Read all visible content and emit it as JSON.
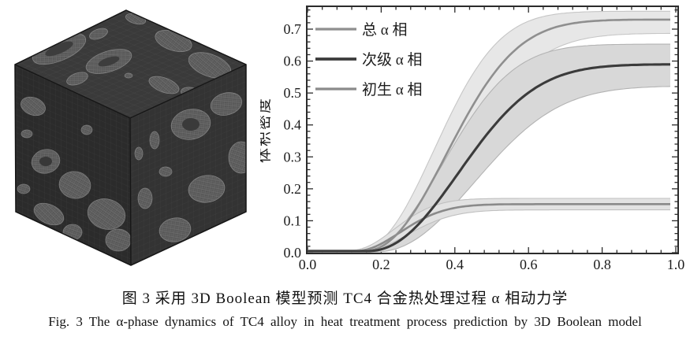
{
  "figure": {
    "caption_cn": "图 3  采用 3D Boolean 模型预测 TC4 合金热处理过程 α 相动力学",
    "caption_en": "Fig. 3  The α-phase dynamics of TC4 alloy in heat treatment process prediction by 3D Boolean model"
  },
  "cube_render": {
    "alt": "3D Boolean model microstructure cube with meshed α-phase particles"
  },
  "chart_data": {
    "type": "line",
    "title": "",
    "xlabel": "",
    "ylabel": "体积密度",
    "xlim": [
      0.0,
      1.0
    ],
    "ylim": [
      0.0,
      0.772
    ],
    "x_ticks": [
      0.0,
      0.2,
      0.4,
      0.6,
      0.8,
      1.0
    ],
    "x_minor_step": 0.04,
    "y_ticks": [
      0.0,
      0.1,
      0.2,
      0.3,
      0.4,
      0.5,
      0.6,
      0.7
    ],
    "y_minor_step": 0.02,
    "grid": false,
    "frame": "box-with-inward-ticks",
    "axis_color": "#2b2b2b",
    "legend_position": "top-left",
    "x_shared": [
      0.0,
      0.1,
      0.2,
      0.3,
      0.4,
      0.5,
      0.6,
      0.7,
      0.8,
      0.9,
      1.0
    ],
    "series": [
      {
        "id": "total-alpha",
        "name": "总 α 相",
        "line_color": "#8f8f8f",
        "line_width": 2.6,
        "band_fill": "#e7e7e7",
        "band_edge": "#c6c6c6",
        "y": [
          0,
          0,
          0.014,
          0.142,
          0.354,
          0.547,
          0.662,
          0.709,
          0.722,
          0.725,
          0.725
        ],
        "y_upper": [
          0,
          0,
          0.031,
          0.209,
          0.455,
          0.638,
          0.723,
          0.745,
          0.752,
          0.754,
          0.754
        ],
        "y_lower": [
          0,
          0,
          0.005,
          0.092,
          0.265,
          0.45,
          0.582,
          0.651,
          0.676,
          0.683,
          0.684
        ],
        "jmak": {
          "A": 0.725,
          "t0": 0.15,
          "tau": 0.3,
          "n": 2.2
        },
        "jmak_upper": {
          "A": 0.748,
          "t0": 0.135,
          "tau": 0.275,
          "n": 2.2
        },
        "jmak_lower": {
          "A": 0.685,
          "t0": 0.165,
          "tau": 0.325,
          "n": 2.2
        }
      },
      {
        "id": "secondary-alpha",
        "name": "次级 α 相",
        "line_color": "#3b3b3b",
        "line_width": 3.1,
        "band_fill": "#d8d8d8",
        "band_edge": "#b3b3b3",
        "y": [
          0,
          0,
          0.006,
          0.082,
          0.229,
          0.384,
          0.496,
          0.554,
          0.577,
          0.583,
          0.585
        ],
        "y_upper": [
          0,
          0,
          0.012,
          0.143,
          0.334,
          0.5,
          0.595,
          0.633,
          0.642,
          0.645,
          0.645
        ],
        "y_lower": [
          0,
          0,
          0.002,
          0.044,
          0.149,
          0.28,
          0.392,
          0.465,
          0.501,
          0.515,
          0.519
        ],
        "jmak": {
          "A": 0.585,
          "t0": 0.16,
          "tau": 0.33,
          "n": 2.2
        },
        "jmak_upper": {
          "A": 0.645,
          "t0": 0.14,
          "tau": 0.3,
          "n": 2.2
        },
        "jmak_lower": {
          "A": 0.52,
          "t0": 0.18,
          "tau": 0.36,
          "n": 2.2
        }
      },
      {
        "id": "primary-alpha",
        "name": "初生 α 相",
        "line_color": "#8a8a8a",
        "line_width": 2.6,
        "band_fill": "#e2e2e2",
        "band_edge": "#c0c0c0",
        "y": [
          0,
          0,
          0.023,
          0.093,
          0.135,
          0.146,
          0.147,
          0.147,
          0.147,
          0.147,
          0.147
        ],
        "y_upper": [
          0,
          0,
          0.036,
          0.116,
          0.154,
          0.161,
          0.162,
          0.162,
          0.162,
          0.162,
          0.162
        ],
        "y_lower": [
          0,
          0,
          0.014,
          0.072,
          0.116,
          0.13,
          0.132,
          0.132,
          0.132,
          0.132,
          0.132
        ],
        "jmak": {
          "A": 0.147,
          "t0": 0.13,
          "tau": 0.17,
          "n": 2.0
        },
        "jmak_upper": {
          "A": 0.162,
          "t0": 0.12,
          "tau": 0.16,
          "n": 2.0
        },
        "jmak_lower": {
          "A": 0.132,
          "t0": 0.14,
          "tau": 0.18,
          "n": 2.0
        }
      }
    ]
  }
}
